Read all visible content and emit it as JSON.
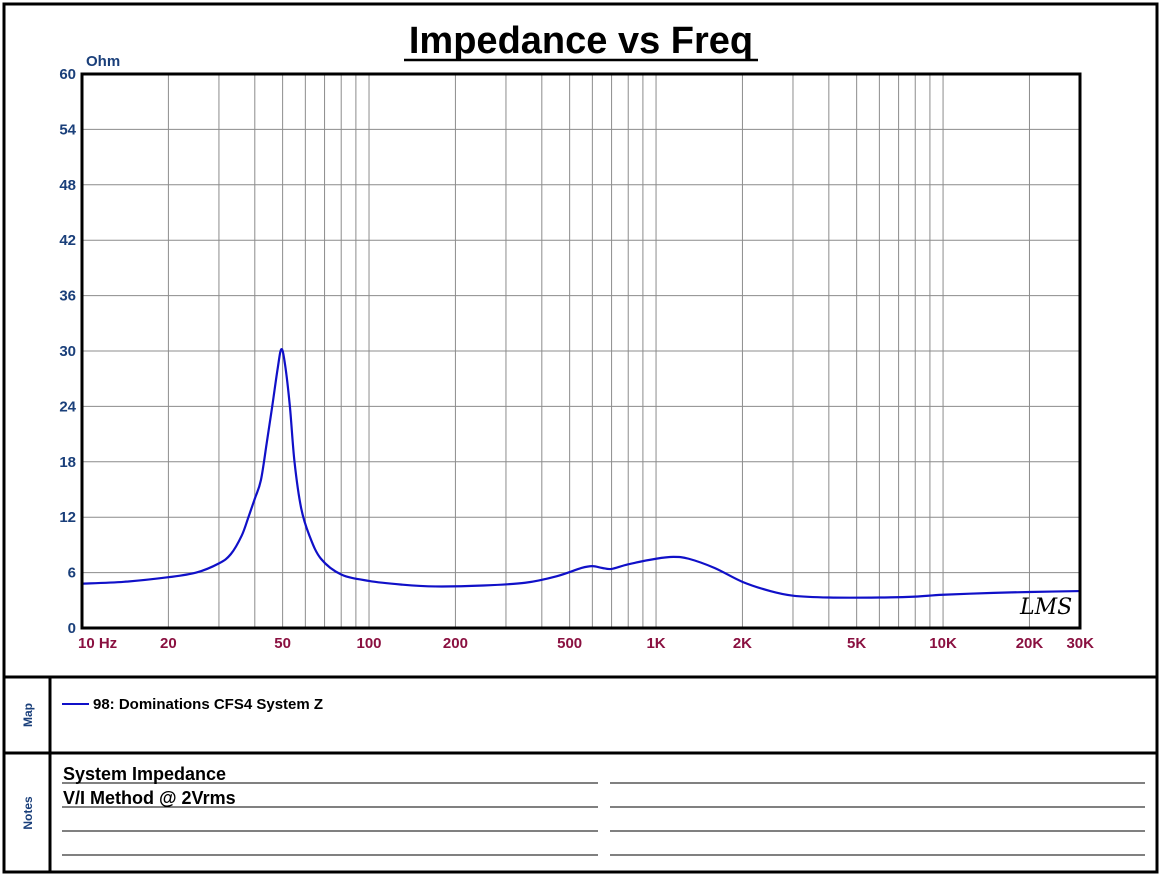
{
  "chart_data": {
    "type": "line",
    "title": "Impedance vs Freq",
    "y_unit": "Ohm",
    "x_scale": "log",
    "xlim": [
      10,
      30000
    ],
    "ylim": [
      0,
      60
    ],
    "grid": true,
    "y_ticks": [
      0,
      6,
      12,
      18,
      24,
      30,
      36,
      42,
      48,
      54,
      60
    ],
    "x_ticks": [
      {
        "value": 10,
        "label": "10 Hz"
      },
      {
        "value": 20,
        "label": "20"
      },
      {
        "value": 50,
        "label": "50"
      },
      {
        "value": 100,
        "label": "100"
      },
      {
        "value": 200,
        "label": "200"
      },
      {
        "value": 500,
        "label": "500"
      },
      {
        "value": 1000,
        "label": "1K"
      },
      {
        "value": 2000,
        "label": "2K"
      },
      {
        "value": 5000,
        "label": "5K"
      },
      {
        "value": 10000,
        "label": "10K"
      },
      {
        "value": 20000,
        "label": "20K"
      },
      {
        "value": 30000,
        "label": "30K"
      }
    ],
    "series": [
      {
        "name": "98: Dominations CFS4 System Z",
        "color": "#1010c8",
        "points": [
          [
            10,
            4.8
          ],
          [
            14,
            5.0
          ],
          [
            20,
            5.5
          ],
          [
            25,
            6.0
          ],
          [
            30,
            7.0
          ],
          [
            33,
            8.0
          ],
          [
            36,
            10.0
          ],
          [
            38,
            12.0
          ],
          [
            40,
            14.0
          ],
          [
            42,
            16.0
          ],
          [
            44,
            20.0
          ],
          [
            46,
            24.0
          ],
          [
            48,
            28.0
          ],
          [
            49.5,
            30.2
          ],
          [
            51,
            28.5
          ],
          [
            53,
            24.0
          ],
          [
            55,
            18.0
          ],
          [
            58,
            13.0
          ],
          [
            62,
            10.0
          ],
          [
            68,
            7.5
          ],
          [
            80,
            5.8
          ],
          [
            100,
            5.1
          ],
          [
            130,
            4.7
          ],
          [
            170,
            4.5
          ],
          [
            250,
            4.6
          ],
          [
            350,
            4.9
          ],
          [
            450,
            5.6
          ],
          [
            550,
            6.5
          ],
          [
            600,
            6.7
          ],
          [
            650,
            6.5
          ],
          [
            700,
            6.4
          ],
          [
            800,
            6.9
          ],
          [
            1000,
            7.5
          ],
          [
            1150,
            7.7
          ],
          [
            1300,
            7.5
          ],
          [
            1600,
            6.5
          ],
          [
            2000,
            5.0
          ],
          [
            2500,
            4.0
          ],
          [
            3000,
            3.5
          ],
          [
            4000,
            3.3
          ],
          [
            6000,
            3.3
          ],
          [
            8000,
            3.4
          ],
          [
            10000,
            3.6
          ],
          [
            15000,
            3.8
          ],
          [
            20000,
            3.9
          ],
          [
            30000,
            4.0
          ]
        ]
      }
    ]
  },
  "sidebar": {
    "map_label": "Map",
    "notes_label": "Notes"
  },
  "notes": {
    "line1": "System Impedance",
    "line2": "V/I Method @ 2Vrms"
  },
  "stamp": "LMS"
}
